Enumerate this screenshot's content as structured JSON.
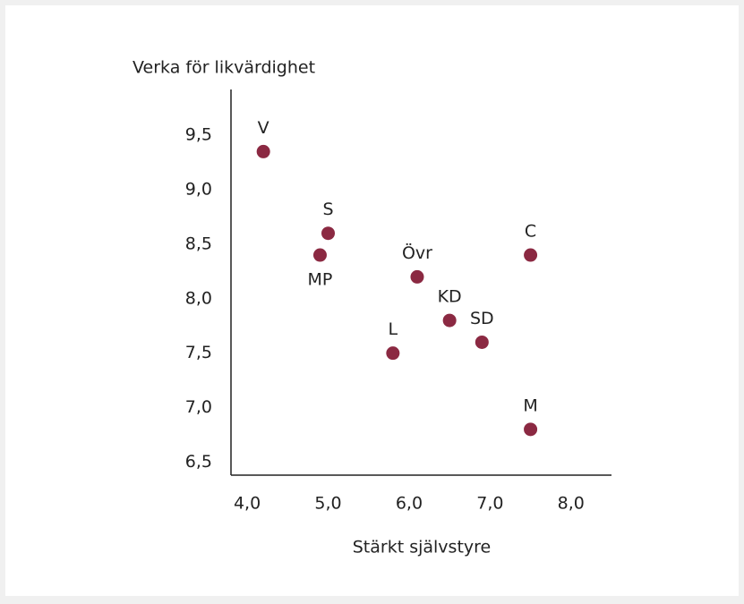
{
  "chart_data": {
    "type": "scatter",
    "y_label": "Verka för likvärdighet",
    "x_label": "Stärkt självstyre",
    "point_labels": [
      "V",
      "S",
      "MP",
      "Övr",
      "KD",
      "SD",
      "L",
      "C",
      "M"
    ],
    "x": [
      4.2,
      5.0,
      4.9,
      6.1,
      6.5,
      6.9,
      5.8,
      7.5,
      7.5
    ],
    "values": [
      9.35,
      8.6,
      8.4,
      8.2,
      7.8,
      7.6,
      7.5,
      8.4,
      6.8
    ],
    "color": "#8b2942",
    "xlim": [
      3.8,
      8.5
    ],
    "xticks": [
      {
        "value": 4,
        "label": "4,0"
      },
      {
        "value": 5,
        "label": "5,0"
      },
      {
        "value": 6,
        "label": "6,0"
      },
      {
        "value": 7,
        "label": "7,0"
      },
      {
        "value": 8,
        "label": "8,0"
      }
    ],
    "ylim": [
      6.38,
      9.92
    ],
    "yticks": [
      {
        "value": 6.5,
        "label": "6,5"
      },
      {
        "value": 7,
        "label": "7,0"
      },
      {
        "value": 7.5,
        "label": "7,5"
      },
      {
        "value": 8,
        "label": "8,0"
      },
      {
        "value": 8.5,
        "label": "8,5"
      },
      {
        "value": 9,
        "label": "9,0"
      },
      {
        "value": 9.5,
        "label": "9,5"
      }
    ]
  }
}
